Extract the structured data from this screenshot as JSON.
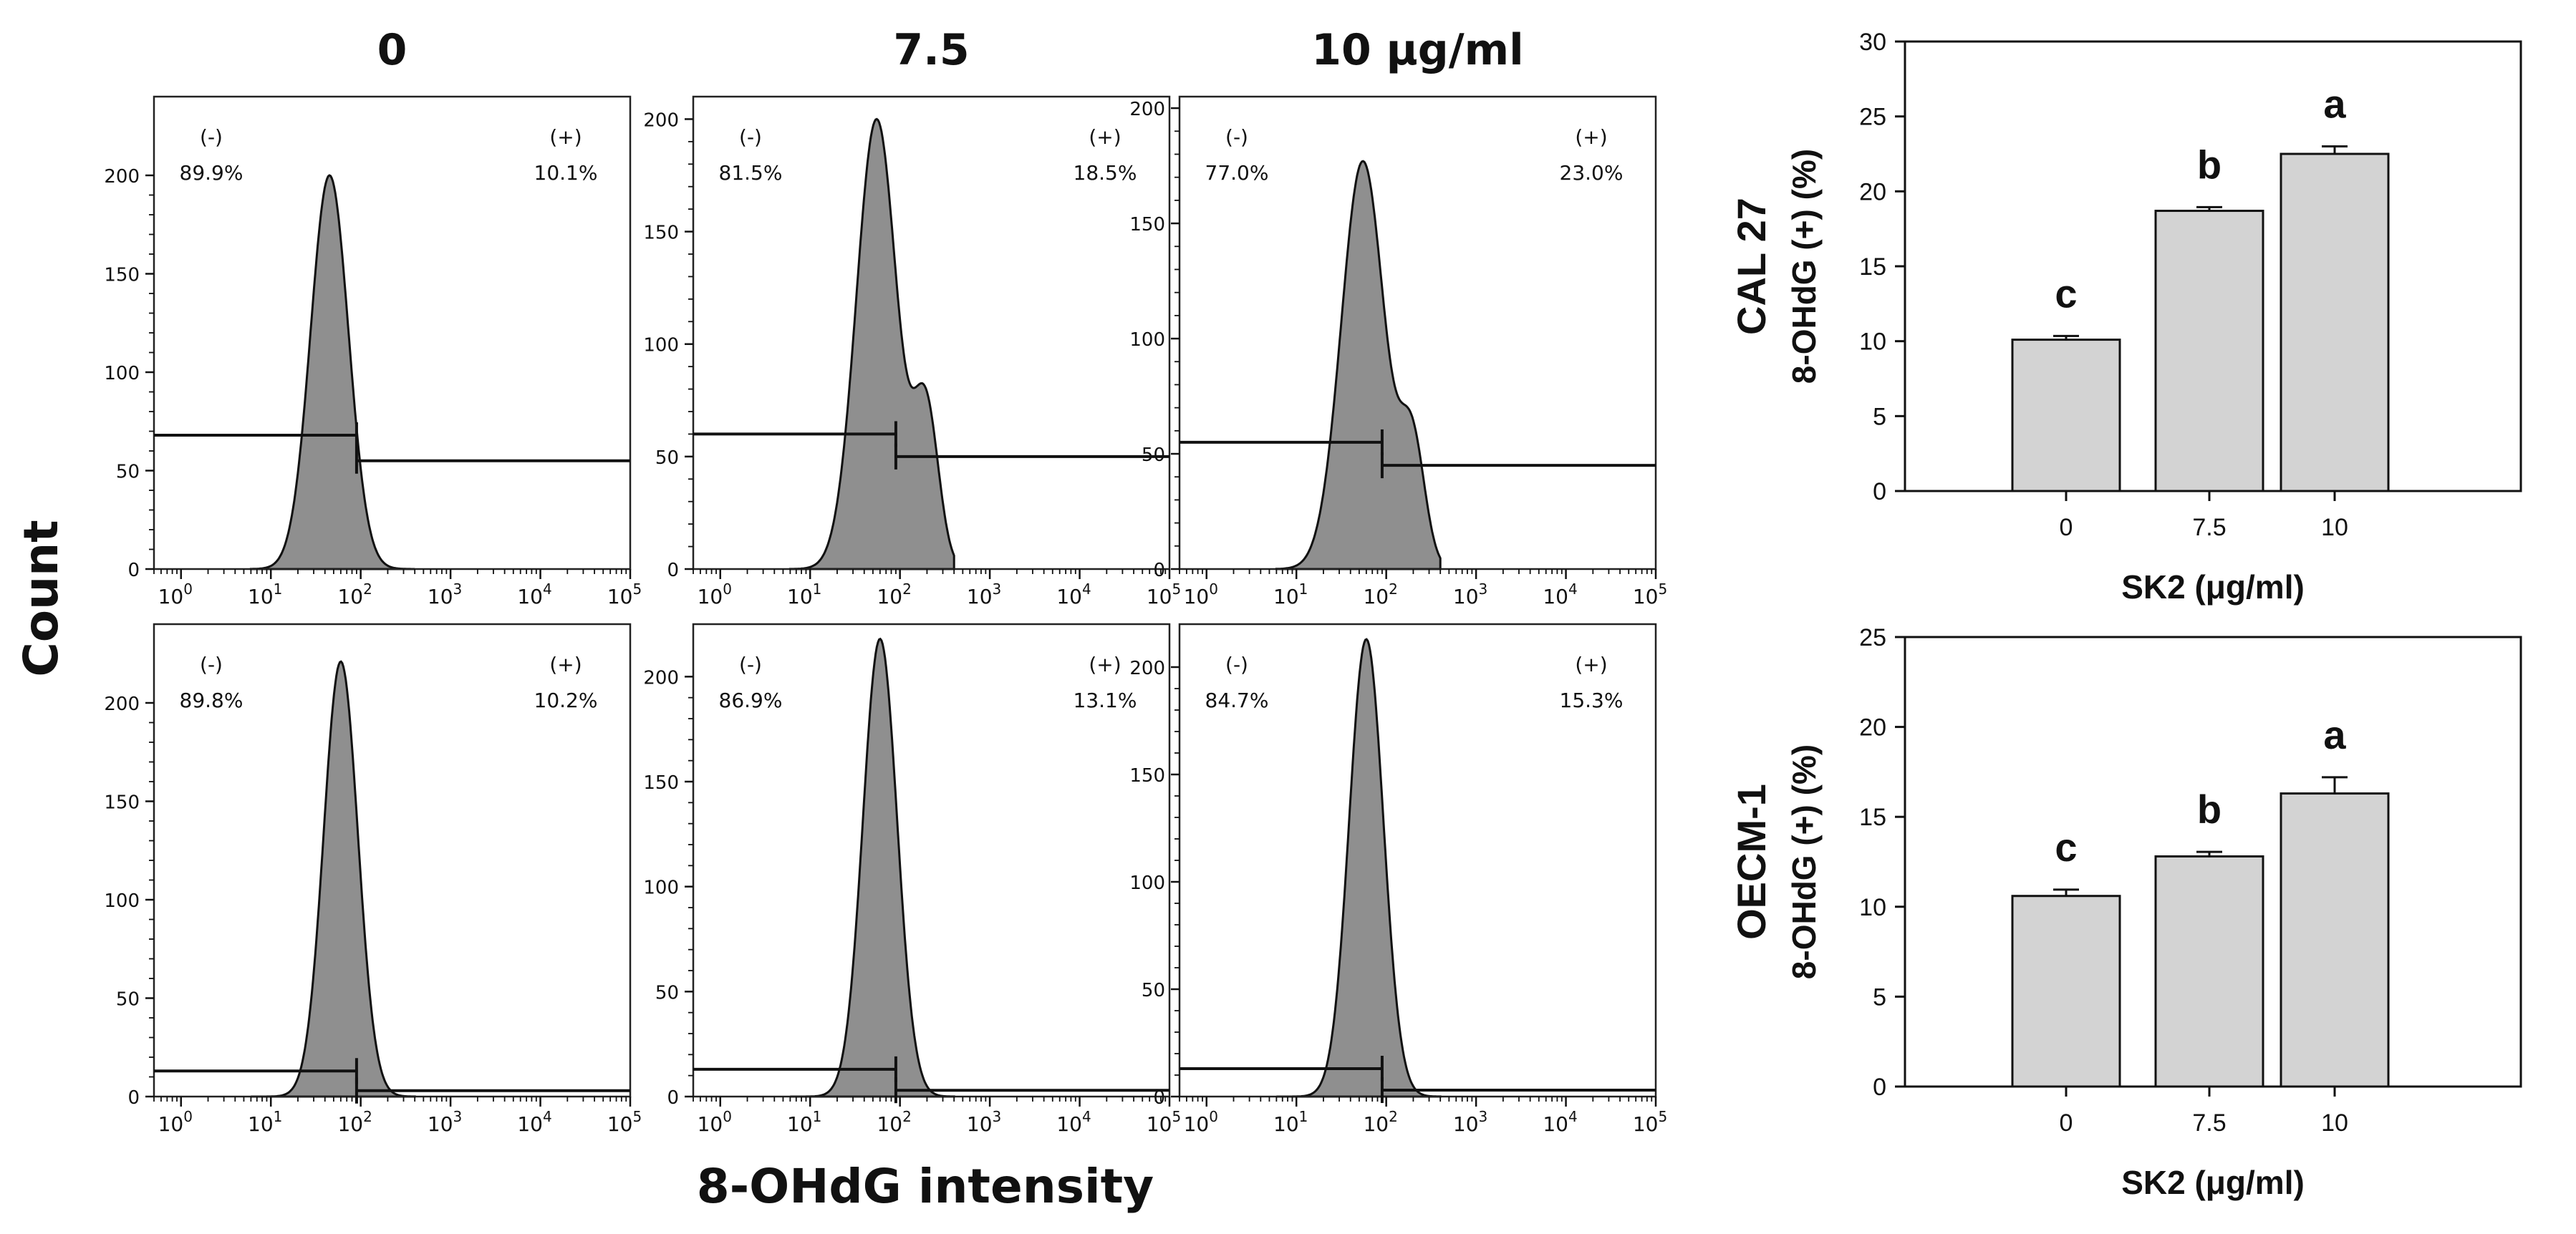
{
  "figure": {
    "count_label": "Count",
    "intensity_label": "8-OHdG intensity"
  },
  "colors": {
    "hist_fill": "#8f8f8f",
    "bar_fill": "#d3d3d3",
    "ink": "#111111"
  },
  "chart_data": [
    {
      "type": "histogram-grid",
      "column_headers": [
        "0",
        "7.5",
        "10 μg/ml"
      ],
      "x_scale": "log",
      "x_ticks": [
        "10^0",
        "10^1",
        "10^2",
        "10^3",
        "10^4",
        "10^5"
      ],
      "xlim": [
        0.5,
        100000
      ],
      "xlabel": "8-OHdG intensity",
      "ylabel": "Count",
      "gate_split": 90,
      "panels": [
        {
          "row": 0,
          "col": 0,
          "neg_label": "(-)",
          "neg_pct": "89.9%",
          "pos_label": "(+)",
          "pos_pct": "10.1%",
          "ylim": [
            0,
            240
          ],
          "yticks": [
            0,
            50,
            100,
            150,
            200
          ],
          "peak_count": 200,
          "peak_at": 45,
          "spread": 0.42,
          "right_shoulder": 0.0,
          "gate_neg_y": 68,
          "gate_pos_y": 55
        },
        {
          "row": 0,
          "col": 1,
          "neg_label": "(-)",
          "neg_pct": "81.5%",
          "pos_label": "(+)",
          "pos_pct": "18.5%",
          "ylim": [
            0,
            210
          ],
          "yticks": [
            0,
            50,
            100,
            150,
            200
          ],
          "peak_count": 200,
          "peak_at": 55,
          "spread": 0.45,
          "right_shoulder": 0.35,
          "gate_neg_y": 60,
          "gate_pos_y": 50
        },
        {
          "row": 0,
          "col": 2,
          "neg_label": "(-)",
          "neg_pct": "77.0%",
          "pos_label": "(+)",
          "pos_pct": "23.0%",
          "ylim": [
            0,
            205
          ],
          "yticks": [
            0,
            50,
            100,
            150,
            200
          ],
          "peak_count": 177,
          "peak_at": 55,
          "spread": 0.48,
          "right_shoulder": 0.3,
          "gate_neg_y": 55,
          "gate_pos_y": 45
        },
        {
          "row": 1,
          "col": 0,
          "neg_label": "(-)",
          "neg_pct": "89.8%",
          "pos_label": "(+)",
          "pos_pct": "10.2%",
          "ylim": [
            0,
            240
          ],
          "yticks": [
            0,
            50,
            100,
            150,
            200
          ],
          "peak_count": 221,
          "peak_at": 60,
          "spread": 0.38,
          "right_shoulder": 0.0,
          "gate_neg_y": 13,
          "gate_pos_y": 3
        },
        {
          "row": 1,
          "col": 1,
          "neg_label": "(-)",
          "neg_pct": "86.9%",
          "pos_label": "(+)",
          "pos_pct": "13.1%",
          "ylim": [
            0,
            225
          ],
          "yticks": [
            0,
            50,
            100,
            150,
            200
          ],
          "peak_count": 218,
          "peak_at": 60,
          "spread": 0.38,
          "right_shoulder": 0.0,
          "gate_neg_y": 13,
          "gate_pos_y": 3
        },
        {
          "row": 1,
          "col": 2,
          "neg_label": "(-)",
          "neg_pct": "84.7%",
          "pos_label": "(+)",
          "pos_pct": "15.3%",
          "ylim": [
            0,
            220
          ],
          "yticks": [
            0,
            50,
            100,
            150,
            200
          ],
          "peak_count": 213,
          "peak_at": 60,
          "spread": 0.38,
          "right_shoulder": 0.0,
          "gate_neg_y": 13,
          "gate_pos_y": 3
        }
      ]
    },
    {
      "type": "bar",
      "title": "",
      "cell_line": "CAL 27",
      "ylabel": "8-OHdG (+) (%)",
      "xlabel": "SK2 (μg/ml)",
      "categories": [
        "0",
        "7.5",
        "10"
      ],
      "values": [
        10.1,
        18.7,
        22.5
      ],
      "errors": [
        0.25,
        0.25,
        0.5
      ],
      "letters": [
        "c",
        "b",
        "a"
      ],
      "ylim": [
        0,
        30
      ],
      "yticks": [
        0,
        5,
        10,
        15,
        20,
        25,
        30
      ]
    },
    {
      "type": "bar",
      "title": "",
      "cell_line": "OECM-1",
      "ylabel": "8-OHdG (+) (%)",
      "xlabel": "SK2 (μg/ml)",
      "categories": [
        "0",
        "7.5",
        "10"
      ],
      "values": [
        10.6,
        12.8,
        16.3
      ],
      "errors": [
        0.35,
        0.25,
        0.9
      ],
      "letters": [
        "c",
        "b",
        "a"
      ],
      "ylim": [
        0,
        25
      ],
      "yticks": [
        0,
        5,
        10,
        15,
        20,
        25
      ]
    }
  ]
}
